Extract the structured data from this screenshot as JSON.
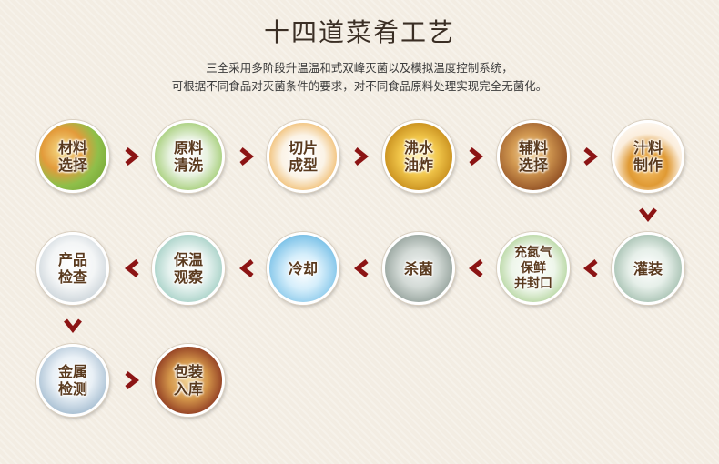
{
  "header": {
    "title": "十四道菜肴工艺",
    "desc_line1": "三全采用多阶段升温温和式双峰灭菌以及模拟温度控制系统，",
    "desc_line2": "可根据不同食品对灭菌条件的要求，对不同食品原料处理实现完全无菌化。"
  },
  "steps": [
    {
      "id": 1,
      "label": "材料\n选择"
    },
    {
      "id": 2,
      "label": "原料\n清洗"
    },
    {
      "id": 3,
      "label": "切片\n成型"
    },
    {
      "id": 4,
      "label": "沸水\n油炸"
    },
    {
      "id": 5,
      "label": "辅料\n选择"
    },
    {
      "id": 6,
      "label": "汁料\n制作"
    },
    {
      "id": 7,
      "label": "灌装"
    },
    {
      "id": 8,
      "label": "充氮气\n保鲜\n并封口"
    },
    {
      "id": 9,
      "label": "杀菌"
    },
    {
      "id": 10,
      "label": "冷却"
    },
    {
      "id": 11,
      "label": "保温\n观察"
    },
    {
      "id": 12,
      "label": "产品\n检查"
    },
    {
      "id": 13,
      "label": "金属\n检测"
    },
    {
      "id": 14,
      "label": "包装\n入库"
    }
  ],
  "colors": {
    "arrow": "#8c1414",
    "title": "#3a2e24",
    "label": "#5a3a1e"
  },
  "icons": {
    "arrow": "chevron-arrow-icon"
  }
}
